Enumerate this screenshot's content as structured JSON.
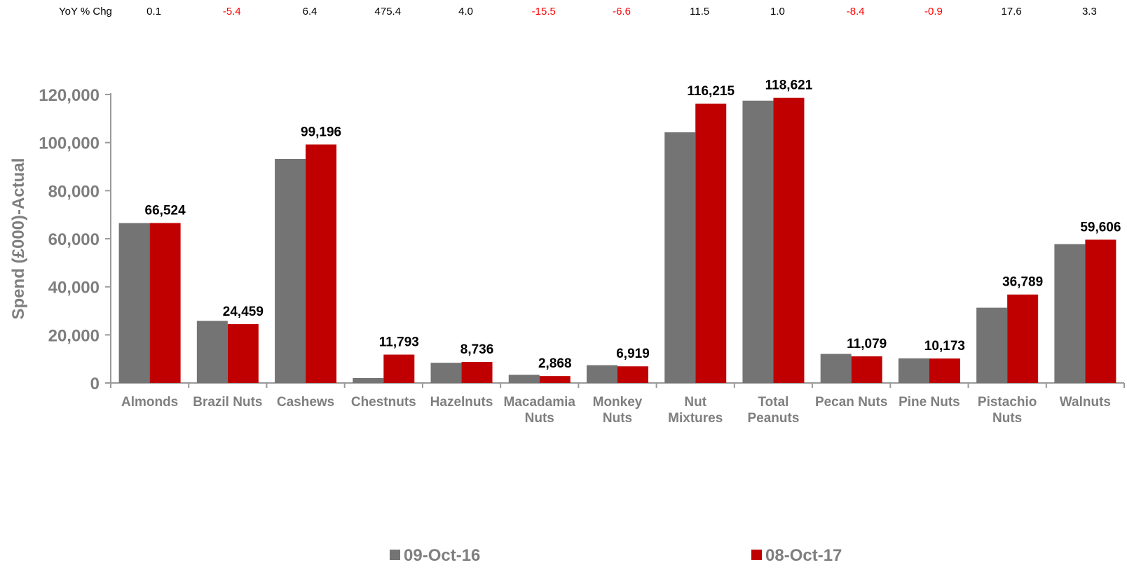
{
  "yoy": {
    "label": "YoY % Chg",
    "values": [
      "0.1",
      "-5.4",
      "6.4",
      "475.4",
      "4.0",
      "-15.5",
      "-6.6",
      "11.5",
      "1.0",
      "-8.4",
      "-0.9",
      "17.6",
      "3.3"
    ],
    "positive_color": "#000000",
    "negative_color": "#ff0000"
  },
  "chart_data": {
    "type": "bar",
    "ylabel": "Spend (£000)-Actual",
    "ylim": [
      0,
      120000
    ],
    "yticks": [
      "0",
      "20,000",
      "40,000",
      "60,000",
      "80,000",
      "100,000",
      "120,000"
    ],
    "ytick_values": [
      0,
      20000,
      40000,
      60000,
      80000,
      100000,
      120000
    ],
    "grid": false,
    "legend_position": "bottom",
    "categories": [
      [
        "Almonds"
      ],
      [
        "Brazil Nuts"
      ],
      [
        "Cashews"
      ],
      [
        "Chestnuts"
      ],
      [
        "Hazelnuts"
      ],
      [
        "Macadamia",
        "Nuts"
      ],
      [
        "Monkey",
        "Nuts"
      ],
      [
        "Nut",
        "Mixtures"
      ],
      [
        "Total",
        "Peanuts"
      ],
      [
        "Pecan Nuts"
      ],
      [
        "Pine Nuts"
      ],
      [
        "Pistachio",
        "Nuts"
      ],
      [
        "Walnuts"
      ]
    ],
    "series": [
      {
        "name": "09-Oct-16",
        "color": "#747474",
        "values": [
          66500,
          25850,
          93200,
          2050,
          8400,
          3400,
          7400,
          104300,
          117450,
          12100,
          10250,
          31300,
          57750
        ]
      },
      {
        "name": "08-Oct-17",
        "color": "#c00000",
        "values": [
          66524,
          24459,
          99196,
          11793,
          8736,
          2868,
          6919,
          116215,
          118621,
          11079,
          10173,
          36789,
          59606
        ]
      }
    ],
    "data_labels": [
      "66,524",
      "24,459",
      "99,196",
      "11,793",
      "8,736",
      "2,868",
      "6,919",
      "116,215",
      "118,621",
      "11,079",
      "10,173",
      "36,789",
      "59,606"
    ]
  }
}
